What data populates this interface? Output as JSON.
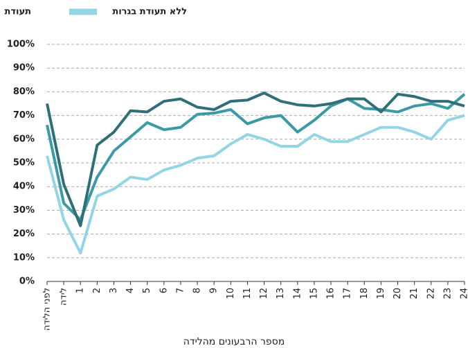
{
  "chart_data": {
    "type": "line",
    "x_label": "מספר הרבעונים מהלידה",
    "categories": [
      "לפני הלידה",
      "לידה",
      "1",
      "2",
      "3",
      "4",
      "5",
      "6",
      "7",
      "8",
      "9",
      "10",
      "11",
      "12",
      "13",
      "14",
      "15",
      "16",
      "17",
      "18",
      "19",
      "20",
      "21",
      "22",
      "23",
      "24"
    ],
    "series": [
      {
        "name": "ללא תעודת בגרות",
        "color": "#93d5e4",
        "values": [
          53,
          26,
          12,
          36,
          39,
          44,
          43,
          47,
          49,
          52,
          53,
          58,
          62,
          60,
          57,
          57,
          62,
          59,
          59,
          62,
          65,
          65,
          63,
          60,
          68,
          70
        ]
      },
      {
        "name": "תעודת",
        "color": "#3a9ba6",
        "values": [
          66,
          33,
          26,
          44,
          55,
          61,
          67,
          64,
          65,
          70.5,
          71,
          72.5,
          66.5,
          69,
          70,
          63,
          68,
          74,
          77,
          73,
          72.5,
          71.5,
          74,
          75,
          73,
          79
        ]
      },
      {
        "color": "#2e6f78",
        "values": [
          75,
          41,
          23.5,
          57.5,
          63,
          72,
          71.5,
          76,
          77,
          73.5,
          72.5,
          76,
          76.5,
          79.5,
          76,
          74.5,
          74,
          75,
          77,
          77,
          71.5,
          79,
          78,
          76,
          76,
          74
        ]
      }
    ],
    "ylim": [
      0,
      100
    ],
    "yticks": [
      {
        "value": 0,
        "label": "0%"
      },
      {
        "value": 10,
        "label": "10%"
      },
      {
        "value": 20,
        "label": "20%"
      },
      {
        "value": 30,
        "label": "30%"
      },
      {
        "value": 40,
        "label": "40%"
      },
      {
        "value": 50,
        "label": "50%"
      },
      {
        "value": 60,
        "label": "60%"
      },
      {
        "value": 70,
        "label": "70%"
      },
      {
        "value": 80,
        "label": "80%"
      },
      {
        "value": 90,
        "label": "90%"
      },
      {
        "value": 100,
        "label": "100%"
      }
    ],
    "grid": true
  }
}
